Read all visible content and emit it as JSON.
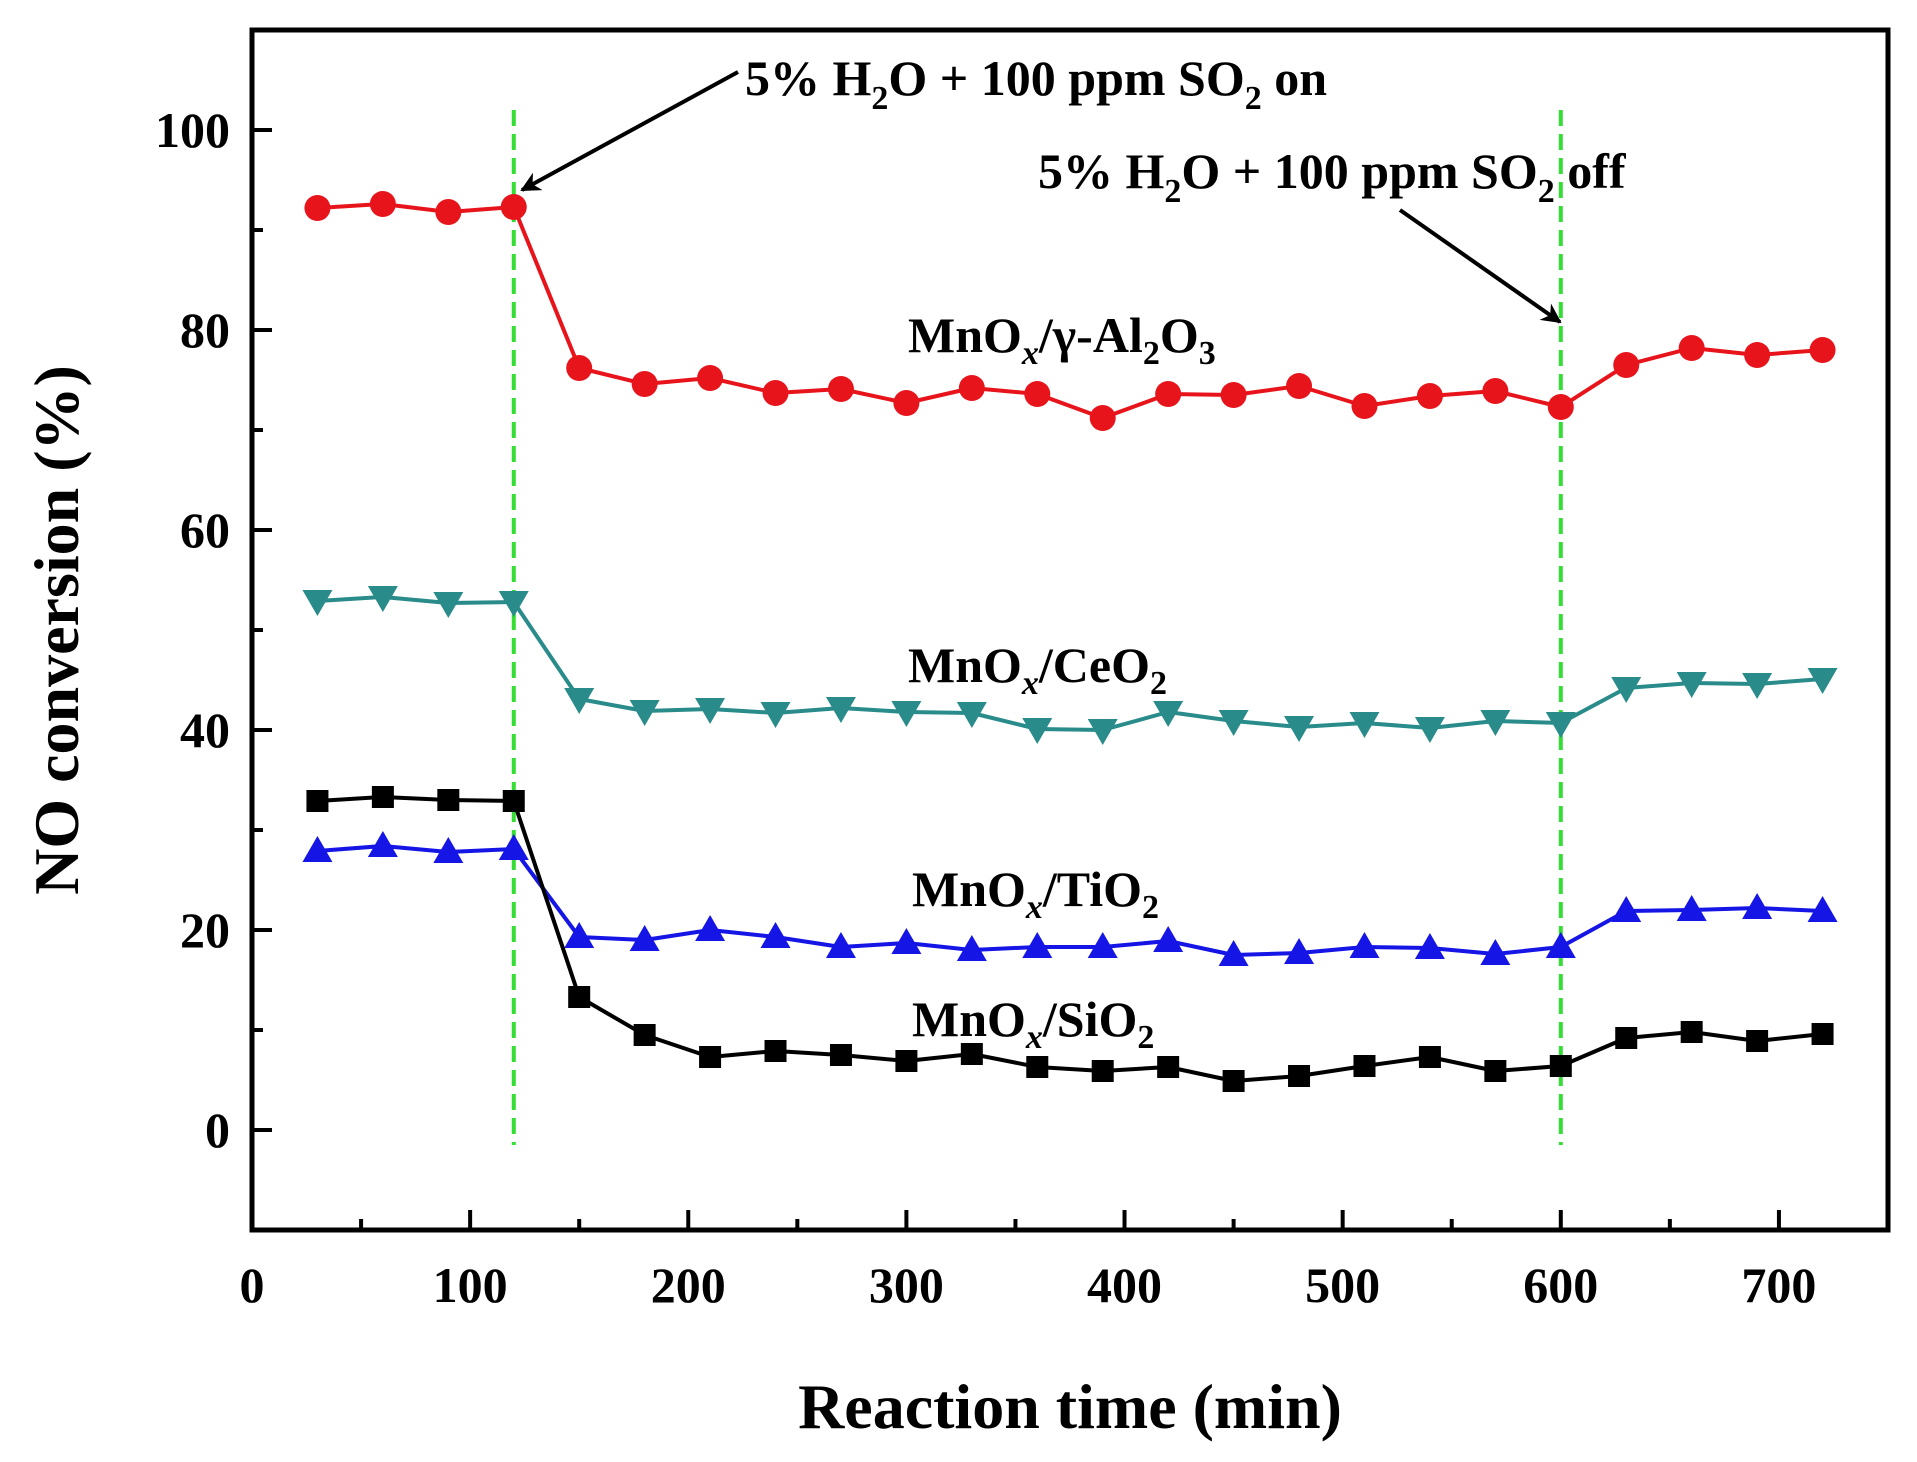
{
  "chart_data": {
    "type": "line",
    "xlabel": "Reaction time (min)",
    "ylabel": "NO conversion (%)",
    "xlim": [
      0,
      750
    ],
    "ylim": [
      -10,
      110
    ],
    "xticks": [
      0,
      100,
      200,
      300,
      400,
      500,
      600,
      700
    ],
    "yticks": [
      0,
      20,
      40,
      60,
      80,
      100
    ],
    "x": [
      30,
      60,
      90,
      120,
      150,
      180,
      210,
      240,
      270,
      300,
      330,
      360,
      390,
      420,
      450,
      480,
      510,
      540,
      570,
      600,
      630,
      660,
      690,
      720
    ],
    "series": [
      {
        "name": "MnOx/γ-Al2O3",
        "color": "#e8141b",
        "marker": "circle",
        "values": [
          92.2,
          92.6,
          91.8,
          92.3,
          76.2,
          74.6,
          75.2,
          73.7,
          74.1,
          72.7,
          74.2,
          73.6,
          71.2,
          73.6,
          73.5,
          74.4,
          72.4,
          73.4,
          73.9,
          72.3,
          76.5,
          78.2,
          77.5,
          78.0
        ]
      },
      {
        "name": "MnOx/CeO2",
        "color": "#2a8b8b",
        "marker": "triangle-down",
        "values": [
          52.9,
          53.3,
          52.7,
          52.8,
          43.1,
          41.9,
          42.1,
          41.7,
          42.2,
          41.8,
          41.7,
          40.1,
          40.0,
          41.8,
          40.9,
          40.3,
          40.7,
          40.2,
          40.9,
          40.7,
          44.2,
          44.7,
          44.6,
          45.1
        ]
      },
      {
        "name": "MnOx/TiO2",
        "color": "#1515e6",
        "marker": "triangle-up",
        "values": [
          27.9,
          28.4,
          27.8,
          28.1,
          19.3,
          19.0,
          20.0,
          19.3,
          18.3,
          18.7,
          18.0,
          18.3,
          18.3,
          18.9,
          17.5,
          17.7,
          18.3,
          18.2,
          17.6,
          18.3,
          21.9,
          22.0,
          22.2,
          21.9
        ]
      },
      {
        "name": "MnOx/SiO2",
        "color": "#000000",
        "marker": "square",
        "values": [
          32.9,
          33.3,
          33.0,
          32.9,
          13.3,
          9.5,
          7.3,
          7.9,
          7.5,
          6.9,
          7.6,
          6.3,
          5.9,
          6.3,
          4.9,
          5.4,
          6.4,
          7.3,
          5.9,
          6.4,
          9.2,
          9.8,
          8.9,
          9.6
        ]
      }
    ],
    "vlines": [
      120,
      600
    ],
    "vline_color": "#33dd33",
    "labels": {
      "alumina": {
        "pre": "MnO",
        "x_sub": "x",
        "mid": "/γ-Al",
        "sub1": "2",
        "mid2": "O",
        "sub2": "3"
      },
      "ceria": {
        "pre": "MnO",
        "x_sub": "x",
        "mid": "/CeO",
        "sub1": "2"
      },
      "titania": {
        "pre": "MnO",
        "x_sub": "x",
        "mid": "/TiO",
        "sub1": "2"
      },
      "silica": {
        "pre": "MnO",
        "x_sub": "x",
        "mid": "/SiO",
        "sub1": "2"
      }
    },
    "annotations": {
      "on": {
        "p1": "5% H",
        "s1": "2",
        "p2": "O + 100 ppm SO",
        "s2": "2",
        "p3": " on"
      },
      "off": {
        "p1": "5% H",
        "s1": "2",
        "p2": "O + 100 ppm SO",
        "s2": "2",
        "p3": " off"
      }
    }
  }
}
